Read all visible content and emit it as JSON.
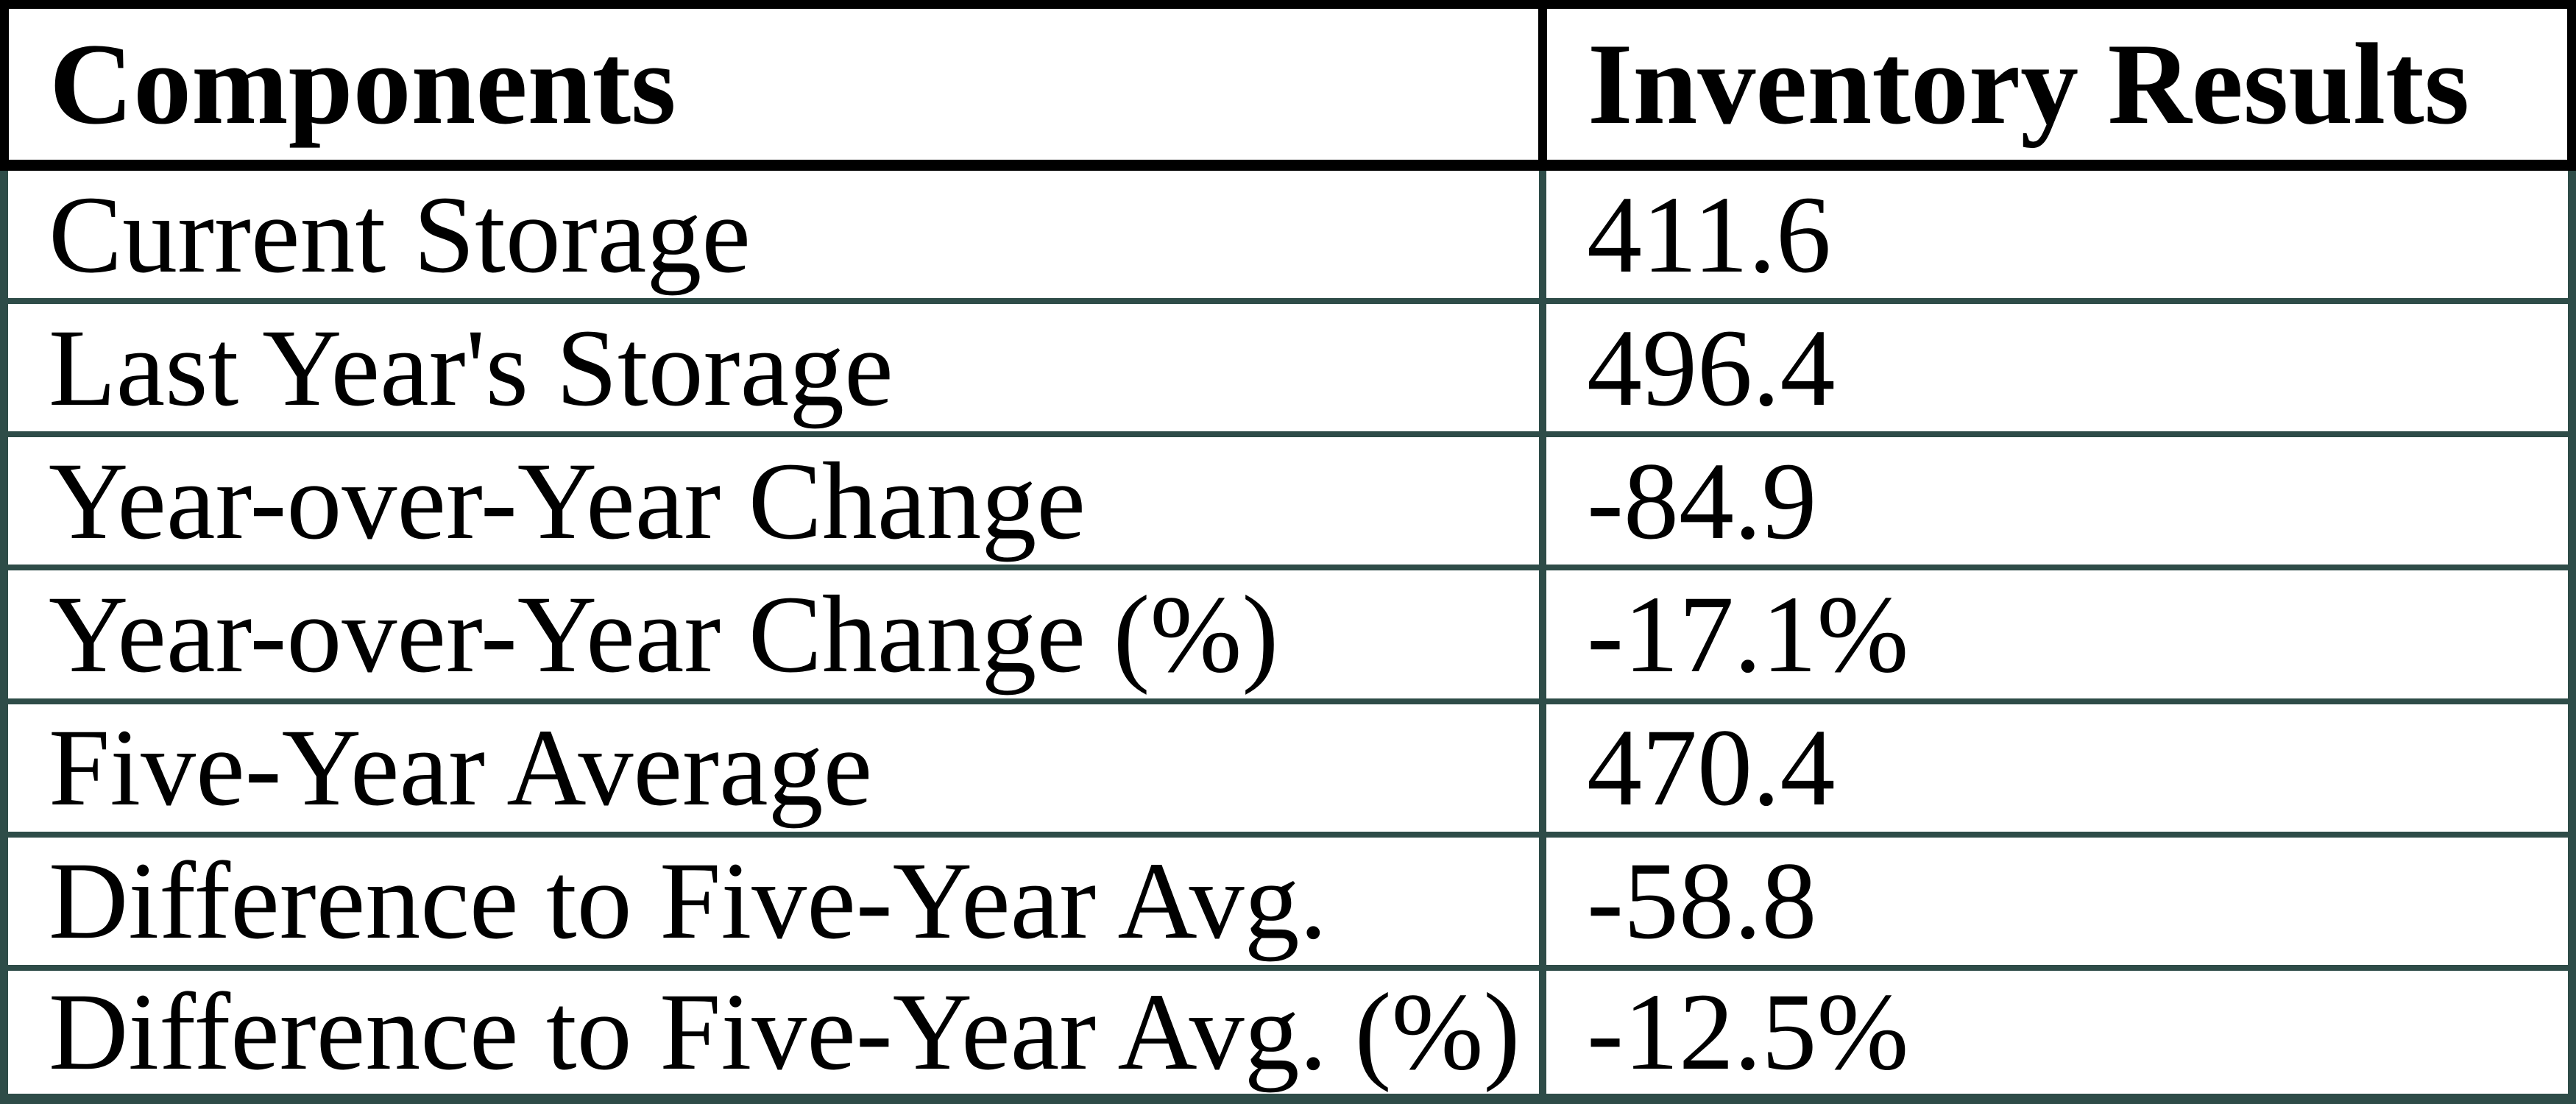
{
  "chart_data": {
    "type": "table",
    "columns": [
      "Components",
      "Inventory Results"
    ],
    "rows": [
      [
        "Current Storage",
        "411.6"
      ],
      [
        "Last Year's Storage",
        "496.4"
      ],
      [
        "Year-over-Year Change",
        "-84.9"
      ],
      [
        "Year-over-Year Change (%)",
        "-17.1%"
      ],
      [
        "Five-Year Average",
        "470.4"
      ],
      [
        "Difference to Five-Year Avg.",
        "-58.8"
      ],
      [
        "Difference to Five-Year Avg. (%)",
        "-12.5%"
      ]
    ]
  },
  "table": {
    "header": {
      "col1": "Components",
      "col2": "Inventory Results"
    },
    "rows": [
      {
        "label": "Current Storage",
        "value": "411.6"
      },
      {
        "label": "Last Year's Storage",
        "value": "496.4"
      },
      {
        "label": "Year-over-Year Change",
        "value": "-84.9"
      },
      {
        "label": "Year-over-Year Change (%)",
        "value": "-17.1%"
      },
      {
        "label": "Five-Year Average",
        "value": "470.4"
      },
      {
        "label": "Difference to Five-Year Avg.",
        "value": "-58.8"
      },
      {
        "label": "Difference to Five-Year Avg. (%)",
        "value": "-12.5%"
      }
    ]
  },
  "colors": {
    "header_border": "#000000",
    "body_border": "#2e4c48",
    "background": "#ffffff",
    "text": "#000000"
  }
}
